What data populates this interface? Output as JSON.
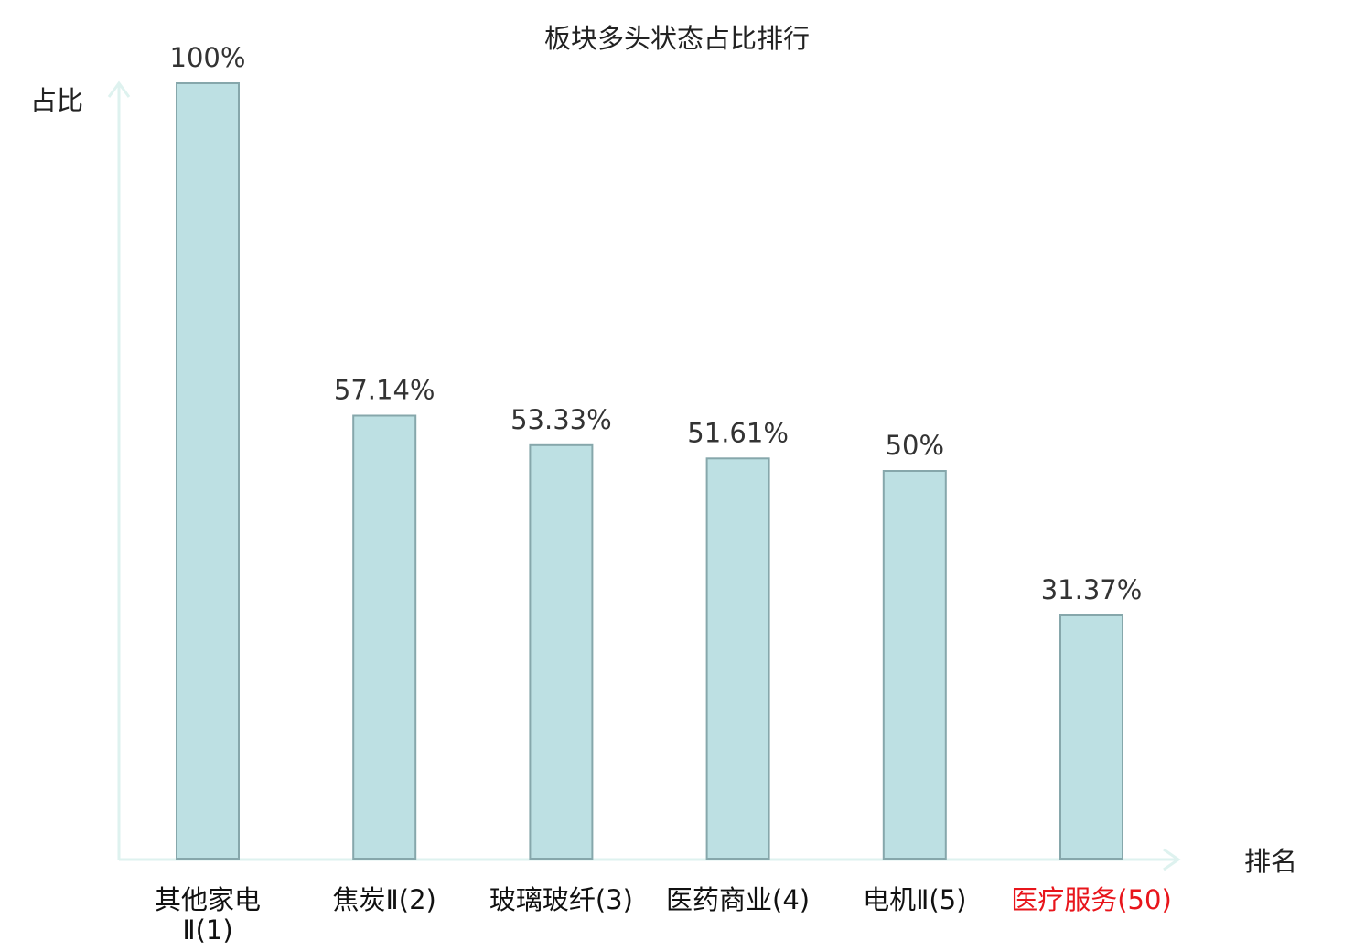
{
  "chart_data": {
    "type": "bar",
    "title": "板块多头状态占比排行",
    "ylabel": "占比",
    "xlabel": "排名",
    "ylim": [
      0,
      100
    ],
    "grid": false,
    "categories": [
      {
        "name": "其他家电Ⅱ",
        "rank": "(1)",
        "label_lines": [
          "其他家电",
          "Ⅱ(1)"
        ]
      },
      {
        "name": "焦炭Ⅱ",
        "rank": "(2)",
        "label_lines": [
          "焦炭Ⅱ(2)"
        ]
      },
      {
        "name": "玻璃玻纤",
        "rank": "(3)",
        "label_lines": [
          "玻璃玻纤(3)"
        ]
      },
      {
        "name": "医药商业",
        "rank": "(4)",
        "label_lines": [
          "医药商业(4)"
        ]
      },
      {
        "name": "电机Ⅱ",
        "rank": "(5)",
        "label_lines": [
          "电机Ⅱ(5)"
        ]
      },
      {
        "name": "医疗服务",
        "rank": "(50)",
        "label_lines": [
          "医疗服务(50)"
        ],
        "highlight": true
      }
    ],
    "values": [
      100,
      57.14,
      53.33,
      51.61,
      50,
      31.37
    ],
    "data_labels": [
      "100%",
      "57.14%",
      "53.33%",
      "51.61%",
      "50%",
      "31.37%"
    ]
  },
  "colors": {
    "bar_fill": "#bde0e3",
    "bar_stroke": "#86a7ab",
    "axis": "#def2ef",
    "highlight": "#e8151b"
  }
}
